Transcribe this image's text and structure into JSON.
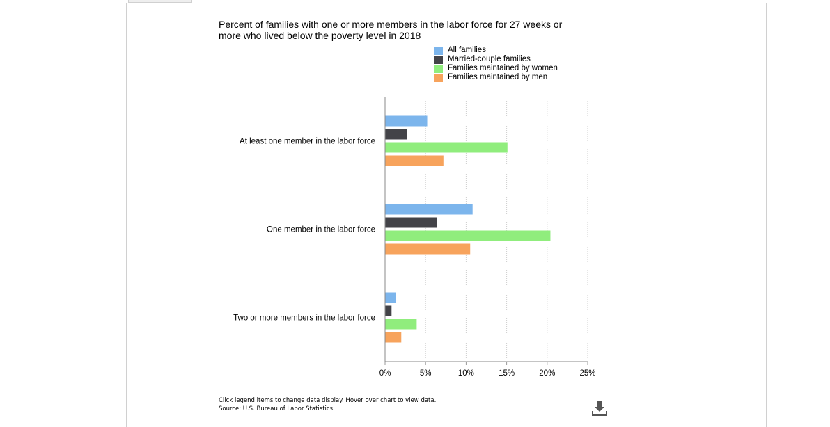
{
  "chart_data": {
    "type": "bar",
    "orientation": "horizontal",
    "title": "Percent of families with one or more members in the labor force for 27 weeks or more who lived below the poverty level in 2018",
    "categories": [
      "At least one member in the labor force",
      "One member in the labor force",
      "Two or more members in the labor force"
    ],
    "series": [
      {
        "name": "All families",
        "color": "#7cb5ec",
        "values": [
          5.2,
          10.8,
          1.3
        ]
      },
      {
        "name": "Married-couple families",
        "color": "#434348",
        "values": [
          2.7,
          6.4,
          0.8
        ]
      },
      {
        "name": "Families maintained by women",
        "color": "#90ed7d",
        "values": [
          15.1,
          20.4,
          3.9
        ]
      },
      {
        "name": "Families maintained by men",
        "color": "#f7a35c",
        "values": [
          7.2,
          10.5,
          2.0
        ]
      }
    ],
    "xlim": [
      0,
      25
    ],
    "x_ticks": [
      0,
      5,
      10,
      15,
      20,
      25
    ],
    "tick_format": "{v}%",
    "grid": true,
    "legend_position": "top-right"
  },
  "footnote": {
    "line1": "Click legend items to change data display. Hover over chart to view data.",
    "line2": "Source: U.S. Bureau of Labor Statistics."
  },
  "icons": {
    "download": "download-icon"
  }
}
